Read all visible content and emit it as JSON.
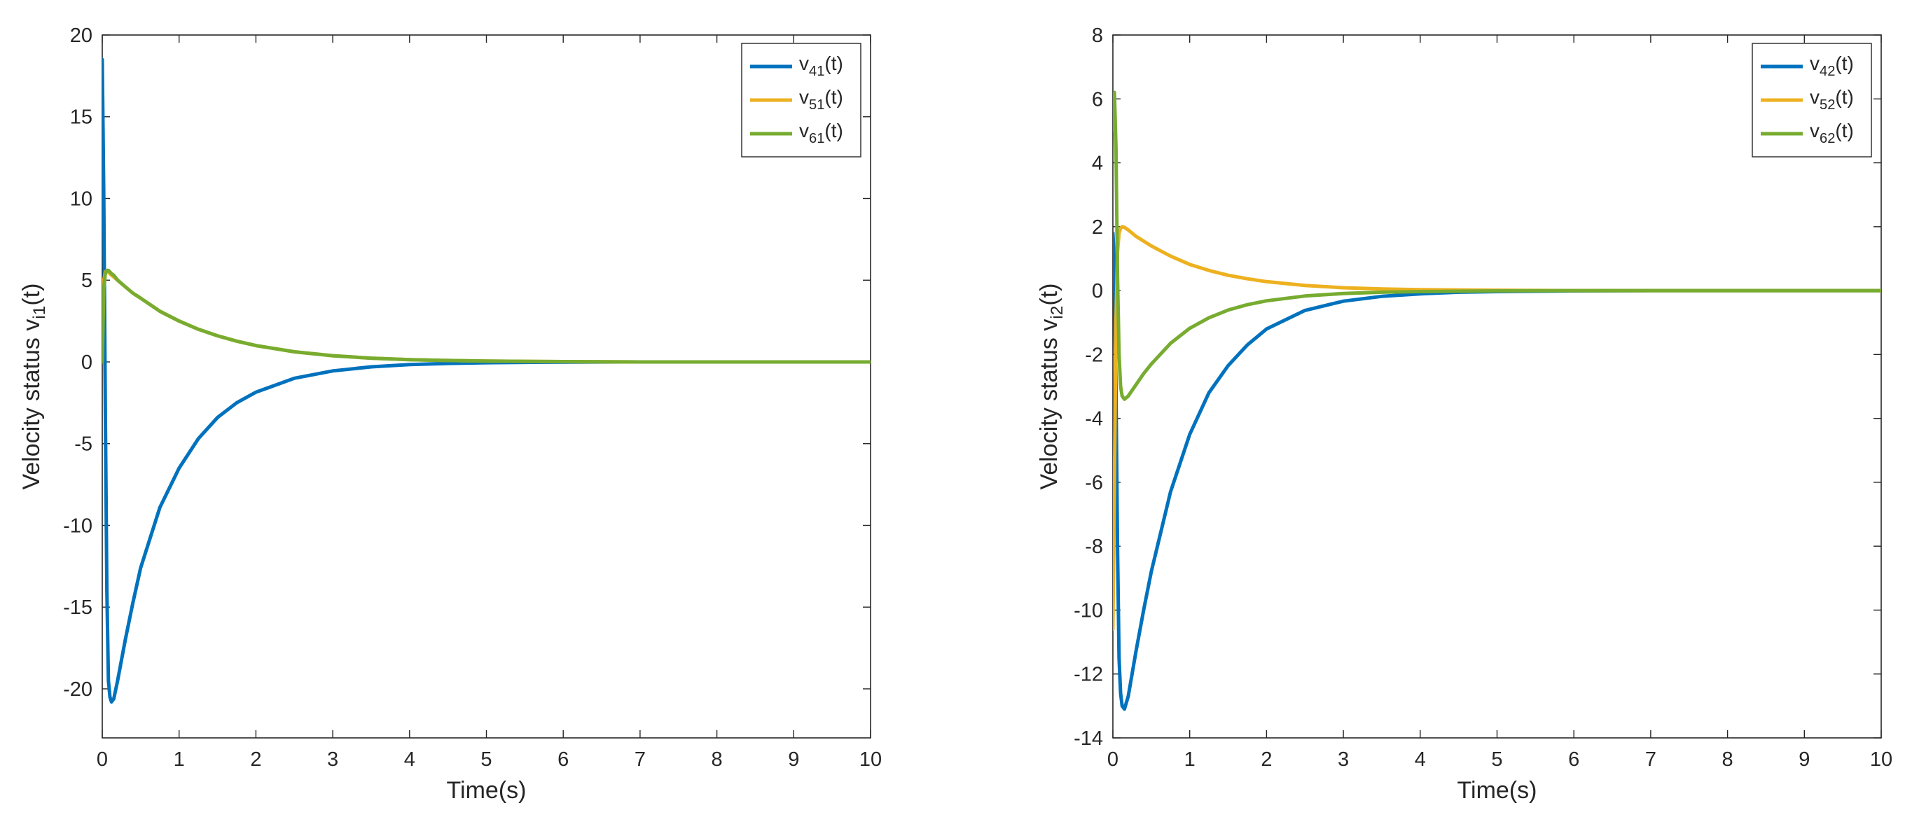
{
  "chart_data": [
    {
      "type": "line",
      "title": "",
      "xlabel": "Time(s)",
      "ylabel_main": "Velocity status v",
      "ylabel_sub": "i1",
      "ylabel_suffix": "(t)",
      "xlim": [
        0,
        10
      ],
      "ylim": [
        -23,
        20
      ],
      "xticks": [
        0,
        1,
        2,
        3,
        4,
        5,
        6,
        7,
        8,
        9,
        10
      ],
      "yticks": [
        -20,
        -15,
        -10,
        -5,
        0,
        5,
        10,
        15,
        20
      ],
      "grid": false,
      "legend_position": "top-right",
      "x": [
        0,
        0.02,
        0.04,
        0.06,
        0.08,
        0.1,
        0.12,
        0.15,
        0.2,
        0.3,
        0.4,
        0.5,
        0.75,
        1,
        1.25,
        1.5,
        1.75,
        2,
        2.5,
        3,
        3.5,
        4,
        4.5,
        5,
        6,
        7,
        8,
        9,
        10
      ],
      "series": [
        {
          "name_main": "v",
          "name_sub": "41",
          "name_suffix": "(t)",
          "color": "#0072BD",
          "values": [
            18.5,
            10,
            -3,
            -14,
            -19.5,
            -20.5,
            -20.8,
            -20.6,
            -19.5,
            -17,
            -14.7,
            -12.6,
            -8.9,
            -6.5,
            -4.7,
            -3.4,
            -2.5,
            -1.85,
            -1.0,
            -0.55,
            -0.3,
            -0.16,
            -0.09,
            -0.05,
            -0.01,
            0,
            0,
            0,
            0
          ]
        },
        {
          "name_main": "v",
          "name_sub": "51",
          "name_suffix": "(t)",
          "color": "#EDB120",
          "values": [
            2.0,
            5.0,
            5.5,
            5.6,
            5.5,
            5.4,
            5.3,
            5.2,
            5.0,
            4.6,
            4.2,
            3.9,
            3.1,
            2.5,
            2.0,
            1.6,
            1.27,
            1.0,
            0.62,
            0.38,
            0.23,
            0.14,
            0.09,
            0.05,
            0.02,
            0,
            0,
            0,
            0
          ]
        },
        {
          "name_main": "v",
          "name_sub": "61",
          "name_suffix": "(t)",
          "color": "#77AC30",
          "values": [
            0.0,
            4.5,
            5.4,
            5.6,
            5.6,
            5.5,
            5.4,
            5.3,
            5.0,
            4.6,
            4.2,
            3.9,
            3.1,
            2.5,
            2.0,
            1.6,
            1.27,
            1.0,
            0.62,
            0.38,
            0.23,
            0.14,
            0.09,
            0.05,
            0.02,
            0,
            0,
            0,
            0
          ]
        }
      ]
    },
    {
      "type": "line",
      "title": "",
      "xlabel": "Time(s)",
      "ylabel_main": "Velocity status v",
      "ylabel_sub": "i2",
      "ylabel_suffix": "(t)",
      "xlim": [
        0,
        10
      ],
      "ylim": [
        -14,
        8
      ],
      "xticks": [
        0,
        1,
        2,
        3,
        4,
        5,
        6,
        7,
        8,
        9,
        10
      ],
      "yticks": [
        -14,
        -12,
        -10,
        -8,
        -6,
        -4,
        -2,
        0,
        2,
        4,
        6,
        8
      ],
      "grid": false,
      "legend_position": "top-right",
      "x": [
        0,
        0.02,
        0.04,
        0.06,
        0.08,
        0.1,
        0.12,
        0.15,
        0.2,
        0.3,
        0.4,
        0.5,
        0.75,
        1,
        1.25,
        1.5,
        1.75,
        2,
        2.5,
        3,
        3.5,
        4,
        4.5,
        5,
        6,
        7,
        8,
        9,
        10
      ],
      "series": [
        {
          "name_main": "v",
          "name_sub": "42",
          "name_suffix": "(t)",
          "color": "#0072BD",
          "values": [
            1.8,
            0.8,
            -3,
            -8,
            -11.5,
            -12.6,
            -13.0,
            -13.1,
            -12.7,
            -11.3,
            -10.0,
            -8.8,
            -6.3,
            -4.5,
            -3.2,
            -2.35,
            -1.7,
            -1.2,
            -0.62,
            -0.33,
            -0.18,
            -0.1,
            -0.05,
            -0.03,
            -0.01,
            0,
            0,
            0,
            0
          ]
        },
        {
          "name_main": "v",
          "name_sub": "52",
          "name_suffix": "(t)",
          "color": "#EDB120",
          "values": [
            -10.6,
            -6,
            -1,
            1.2,
            1.8,
            1.95,
            2.0,
            1.98,
            1.9,
            1.7,
            1.55,
            1.4,
            1.08,
            0.82,
            0.63,
            0.48,
            0.37,
            0.28,
            0.16,
            0.09,
            0.05,
            0.03,
            0.02,
            0.01,
            0,
            0,
            0,
            0,
            0
          ]
        },
        {
          "name_main": "v",
          "name_sub": "62",
          "name_suffix": "(t)",
          "color": "#77AC30",
          "values": [
            5.0,
            6.2,
            4.5,
            0.5,
            -2.0,
            -3.0,
            -3.3,
            -3.4,
            -3.3,
            -2.95,
            -2.6,
            -2.3,
            -1.65,
            -1.18,
            -0.85,
            -0.61,
            -0.44,
            -0.32,
            -0.17,
            -0.09,
            -0.05,
            -0.03,
            -0.02,
            -0.01,
            0,
            0,
            0,
            0,
            0
          ]
        }
      ]
    }
  ]
}
